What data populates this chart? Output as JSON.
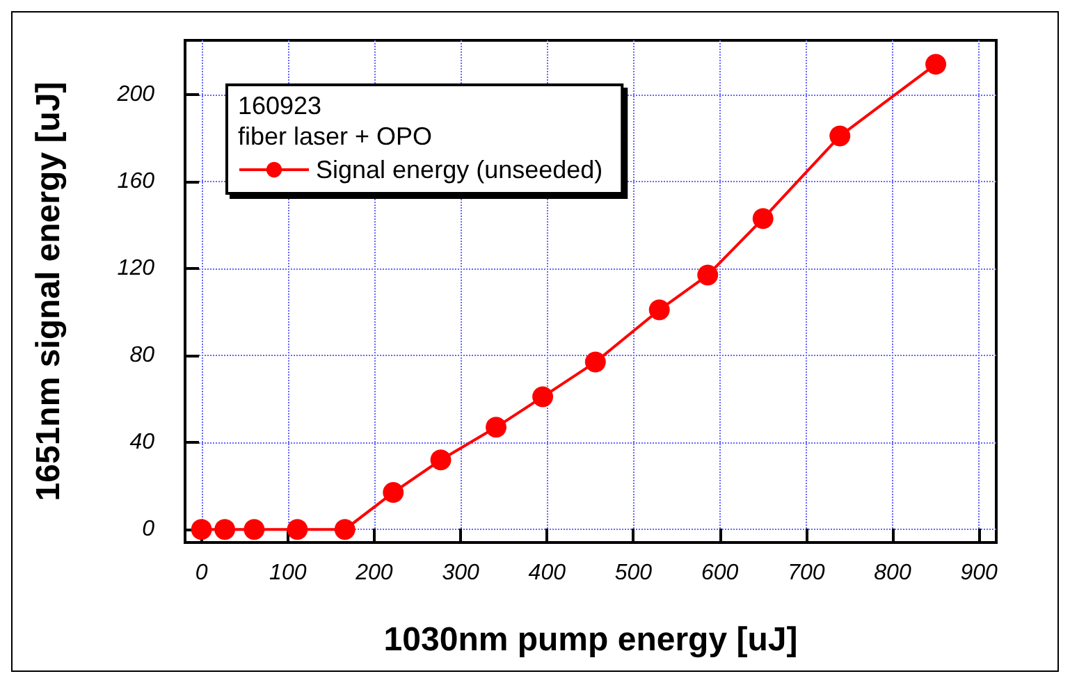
{
  "chart_data": {
    "type": "line",
    "xlabel": "1030nm pump energy [uJ]",
    "ylabel": "1651nm signal energy [uJ]",
    "annotations": [
      "160923",
      "fiber laser + OPO"
    ],
    "x": [
      0,
      27,
      61,
      111,
      166,
      222,
      277,
      341,
      395,
      456,
      530,
      586,
      650,
      739,
      850
    ],
    "series": [
      {
        "name": "Signal energy (unseeded)",
        "color": "#ff0000",
        "values": [
          0,
          0,
          0,
          0,
          0,
          17,
          32,
          47,
          61,
          77,
          101,
          117,
          143,
          181,
          214
        ]
      }
    ],
    "xlim": [
      -19,
      920
    ],
    "xticks": [
      0,
      100,
      200,
      300,
      400,
      500,
      600,
      700,
      800,
      900
    ],
    "ylim": [
      -6,
      225
    ],
    "yticks": [
      0,
      40,
      80,
      120,
      160,
      200
    ],
    "grid": true,
    "legend": "top left",
    "marker": "circle",
    "line_style": "solid"
  }
}
